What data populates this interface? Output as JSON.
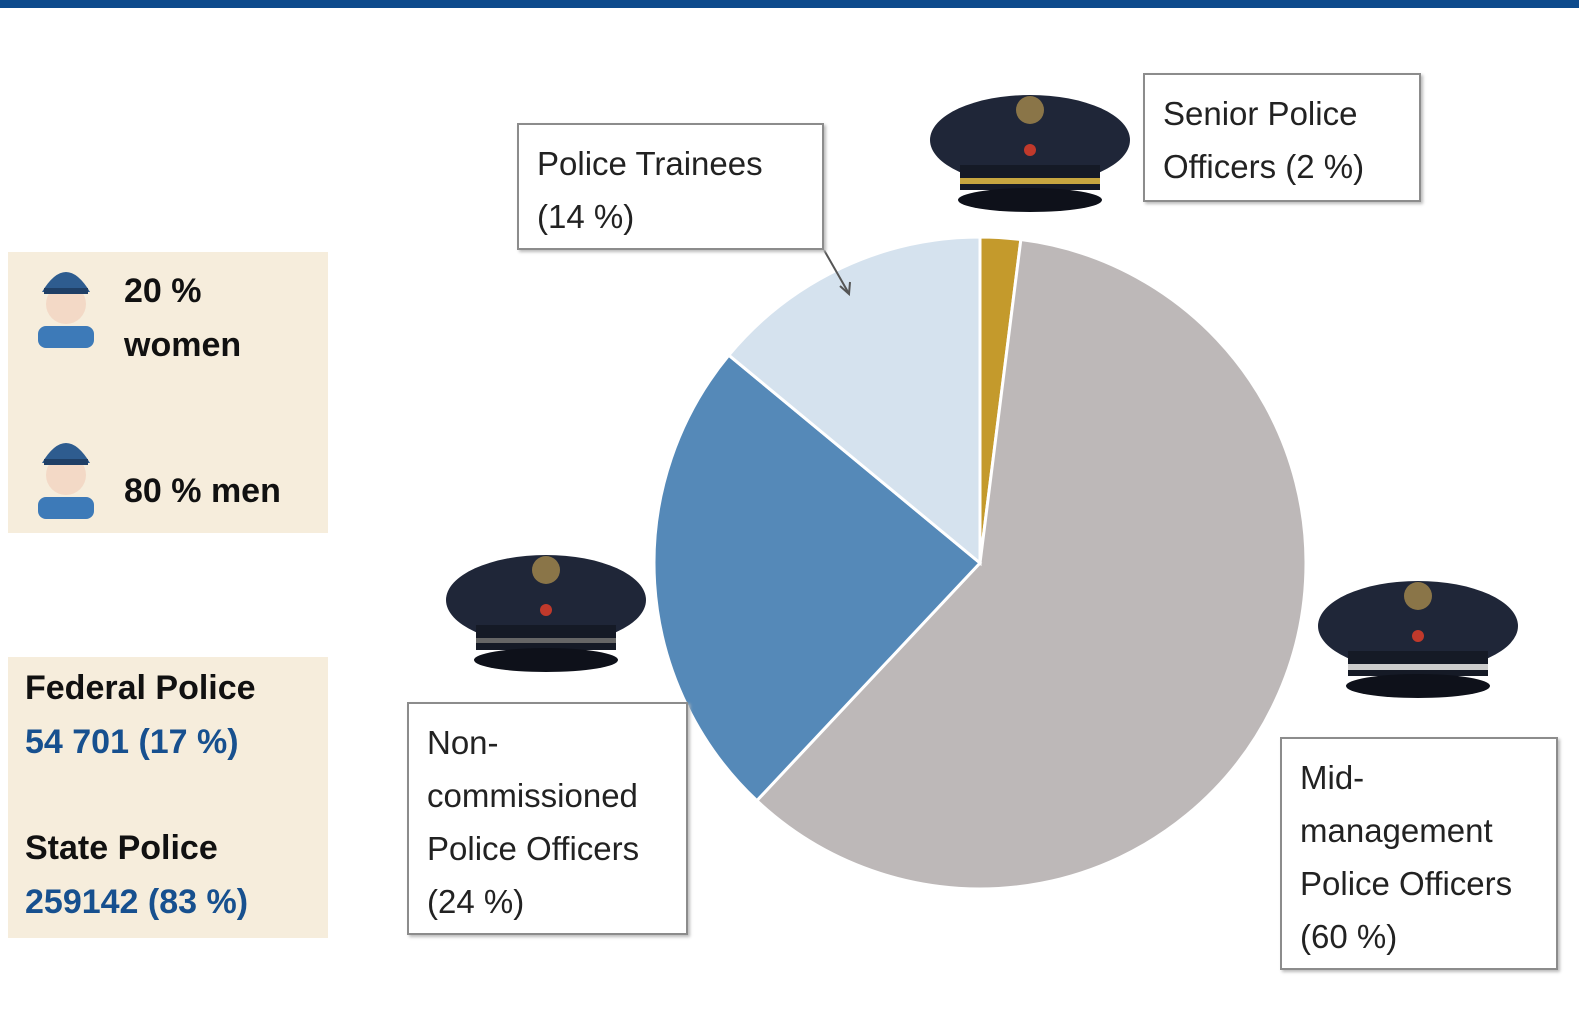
{
  "chart_data": {
    "type": "pie",
    "categories": [
      "Senior Police Officers",
      "Mid-management Police Officers",
      "Non-commissioned Police Officers",
      "Police Trainees"
    ],
    "values": [
      2,
      60,
      24,
      14
    ],
    "value_labels": [
      "(2 %)",
      "(60 %)",
      "(24 %)",
      "(14 %)"
    ],
    "colors": [
      "#c49a2c",
      "#bdb8b8",
      "#5589b8",
      "#d5e2ee"
    ]
  },
  "sidebar": {
    "gender": [
      "20 % women",
      "80 % men"
    ],
    "forces": [
      {
        "name": "Federal Police",
        "figure": "54 701 (17 %)"
      },
      {
        "name": "State Police",
        "figure": "259142 (83 %)"
      }
    ]
  }
}
